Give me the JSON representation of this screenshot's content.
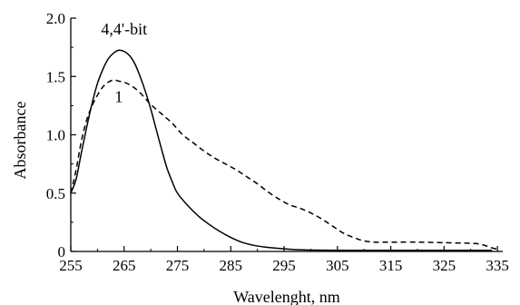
{
  "chart_data": {
    "type": "line",
    "title": "",
    "xlabel": "Wavelenght, nm",
    "ylabel": "Absorbance",
    "xlim": [
      255,
      336
    ],
    "ylim": [
      0,
      2.0
    ],
    "x_ticks": [
      255,
      265,
      275,
      285,
      295,
      305,
      315,
      325,
      335
    ],
    "y_ticks": [
      {
        "value": 0,
        "label": "0"
      },
      {
        "value": 0.5,
        "label": "0.5"
      },
      {
        "value": 1.0,
        "label": "1.0"
      },
      {
        "value": 1.5,
        "label": "1.5"
      },
      {
        "value": 2.0,
        "label": "2.0"
      }
    ],
    "grid": false,
    "series": [
      {
        "name": "4,4'-bit",
        "style": "solid",
        "color": "#000000",
        "points": [
          [
            255,
            0.5
          ],
          [
            256,
            0.62
          ],
          [
            257,
            0.85
          ],
          [
            258,
            1.07
          ],
          [
            259,
            1.27
          ],
          [
            260,
            1.44
          ],
          [
            261,
            1.56
          ],
          [
            262,
            1.65
          ],
          [
            263,
            1.7
          ],
          [
            264,
            1.725
          ],
          [
            265,
            1.715
          ],
          [
            266,
            1.68
          ],
          [
            267,
            1.61
          ],
          [
            268,
            1.5
          ],
          [
            269,
            1.37
          ],
          [
            270,
            1.22
          ],
          [
            271,
            1.05
          ],
          [
            272,
            0.88
          ],
          [
            273,
            0.72
          ],
          [
            274,
            0.6
          ],
          [
            275,
            0.5
          ],
          [
            277,
            0.39
          ],
          [
            279,
            0.3
          ],
          [
            281,
            0.23
          ],
          [
            283,
            0.17
          ],
          [
            285,
            0.12
          ],
          [
            287,
            0.08
          ],
          [
            289,
            0.055
          ],
          [
            291,
            0.04
          ],
          [
            293,
            0.03
          ],
          [
            295,
            0.022
          ],
          [
            297,
            0.016
          ],
          [
            300,
            0.012
          ],
          [
            305,
            0.01
          ],
          [
            315,
            0.01
          ],
          [
            325,
            0.01
          ],
          [
            334,
            0.01
          ]
        ]
      },
      {
        "name": "1",
        "style": "dashed",
        "color": "#000000",
        "points": [
          [
            255,
            0.5
          ],
          [
            256,
            0.7
          ],
          [
            257,
            0.95
          ],
          [
            258,
            1.13
          ],
          [
            259,
            1.25
          ],
          [
            260,
            1.34
          ],
          [
            261,
            1.41
          ],
          [
            262,
            1.45
          ],
          [
            263,
            1.47
          ],
          [
            264,
            1.46
          ],
          [
            265,
            1.45
          ],
          [
            266,
            1.43
          ],
          [
            267,
            1.4
          ],
          [
            268,
            1.36
          ],
          [
            269,
            1.31
          ],
          [
            270,
            1.26
          ],
          [
            272,
            1.18
          ],
          [
            274,
            1.1
          ],
          [
            276,
            1.0
          ],
          [
            278,
            0.93
          ],
          [
            280,
            0.86
          ],
          [
            282,
            0.8
          ],
          [
            284,
            0.75
          ],
          [
            286,
            0.7
          ],
          [
            288,
            0.64
          ],
          [
            290,
            0.58
          ],
          [
            292,
            0.51
          ],
          [
            294,
            0.45
          ],
          [
            296,
            0.4
          ],
          [
            298,
            0.37
          ],
          [
            300,
            0.33
          ],
          [
            302,
            0.28
          ],
          [
            304,
            0.22
          ],
          [
            306,
            0.16
          ],
          [
            308,
            0.12
          ],
          [
            310,
            0.09
          ],
          [
            312,
            0.08
          ],
          [
            315,
            0.08
          ],
          [
            320,
            0.08
          ],
          [
            325,
            0.075
          ],
          [
            330,
            0.07
          ],
          [
            332,
            0.06
          ],
          [
            334,
            0.03
          ],
          [
            335,
            0.02
          ]
        ]
      }
    ],
    "annotations": [
      {
        "text": "4,4'-bit",
        "x": 265,
        "y": 1.86,
        "series": 0
      },
      {
        "text": "1",
        "x": 264,
        "y": 1.28,
        "series": 1
      }
    ]
  }
}
